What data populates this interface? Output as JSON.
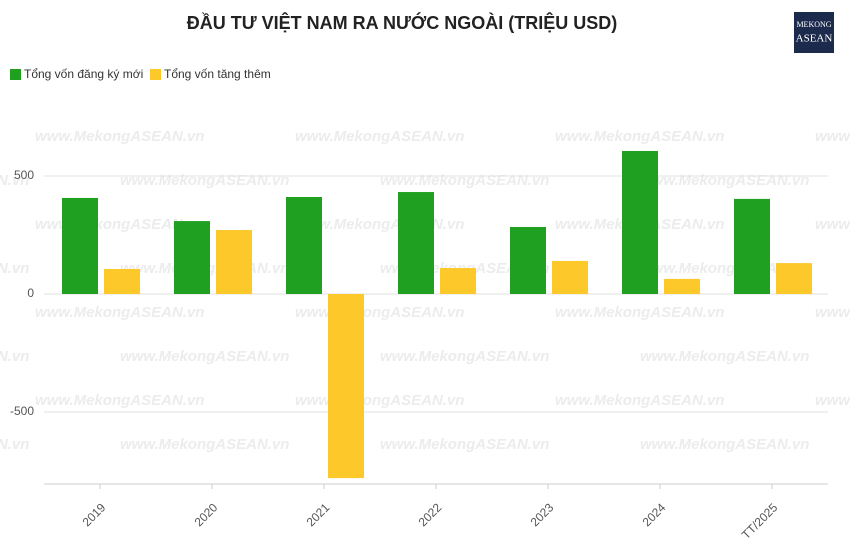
{
  "chart_data": {
    "type": "bar",
    "title": "ĐẦU TƯ VIỆT NAM RA NƯỚC NGOÀI (TRIỆU USD)",
    "logo": [
      "MEKONG",
      "ASEAN"
    ],
    "watermark": "www.MekongASEAN.vn",
    "categories": [
      "2019",
      "2020",
      "2021",
      "2022",
      "2023",
      "2024",
      "TT/2025"
    ],
    "series": [
      {
        "name": "Tổng vốn đăng ký mới",
        "color": "#1fa021",
        "values": [
          407,
          309,
          411,
          432,
          284,
          606,
          403
        ]
      },
      {
        "name": "Tổng vốn tăng thêm",
        "color": "#fdc82a",
        "values": [
          106,
          271,
          -780,
          110,
          140,
          64,
          131
        ]
      }
    ],
    "ylim": [
      -805,
      822
    ],
    "yticks": [
      -500,
      0,
      500
    ],
    "grid": true,
    "legend": "top-left"
  }
}
